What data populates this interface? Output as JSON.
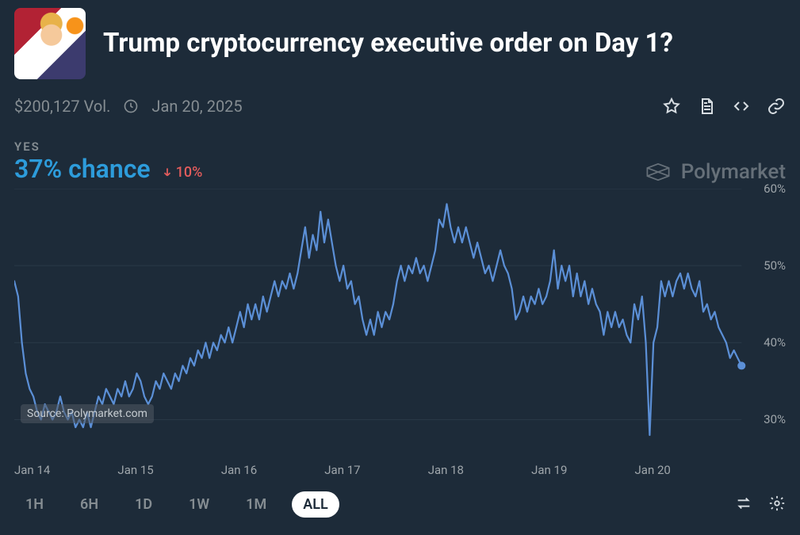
{
  "header": {
    "title": "Trump cryptocurrency executive order on Day 1?"
  },
  "meta": {
    "volume": "$200,127 Vol.",
    "date": "Jan 20, 2025"
  },
  "outcome": {
    "label": "YES",
    "chance_text": "37% chance",
    "delta_text": "10%",
    "delta_direction": "down"
  },
  "brand": "Polymarket",
  "source_badge": "Source: Polymarket.com",
  "chart": {
    "type": "line",
    "line_color": "#5b8fd6",
    "end_marker_color": "#5b8fd6",
    "background_color": "#1d2b39",
    "grid_color": "#2a3a49",
    "line_width": 2.2,
    "ylim": [
      25,
      60
    ],
    "y_ticks": [
      30,
      40,
      50,
      60
    ],
    "y_tick_labels": [
      "30%",
      "40%",
      "50%",
      "60%"
    ],
    "x_tick_labels": [
      "Jan 14",
      "Jan 15",
      "Jan 16",
      "Jan 17",
      "Jan 18",
      "Jan 19",
      "Jan 20"
    ],
    "values": [
      48,
      46,
      40,
      36,
      34,
      33,
      31,
      30,
      32,
      31,
      30,
      31,
      33,
      31,
      30,
      31,
      29,
      30,
      29,
      31,
      29,
      31,
      33,
      32,
      34,
      33,
      32,
      34,
      33,
      35,
      33,
      34,
      36,
      35,
      33,
      32,
      33,
      35,
      34,
      36,
      35,
      34,
      36,
      35,
      37,
      36,
      38,
      37,
      39,
      38,
      40,
      38,
      40,
      39,
      41,
      40,
      42,
      40,
      42,
      44,
      42,
      45,
      43,
      45,
      43,
      46,
      44,
      46,
      48,
      46,
      48,
      47,
      49,
      47,
      49,
      52,
      55,
      51,
      54,
      52,
      57,
      53,
      56,
      53,
      50,
      48,
      50,
      47,
      48,
      45,
      46,
      43,
      41,
      43,
      41,
      44,
      42,
      44,
      43,
      45,
      48,
      50,
      48,
      50,
      49,
      51,
      49,
      50,
      48,
      50,
      52,
      56,
      55,
      58,
      55,
      53,
      55,
      53,
      55,
      53,
      51,
      53,
      51,
      49,
      50,
      48,
      50,
      52,
      50,
      49,
      47,
      43,
      44,
      46,
      44,
      46,
      45,
      47,
      45,
      46,
      48,
      52,
      47,
      50,
      48,
      50,
      46,
      49,
      46,
      48,
      45,
      47,
      45,
      44,
      41,
      44,
      42,
      44,
      42,
      43,
      41,
      40,
      45,
      43,
      46,
      40,
      28,
      40,
      42,
      48,
      46,
      48,
      46,
      48,
      49,
      47,
      49,
      47,
      46,
      48,
      44,
      45,
      43,
      44,
      42,
      41,
      40,
      38,
      39,
      38,
      37
    ]
  },
  "ranges": {
    "options": [
      "1H",
      "6H",
      "1D",
      "1W",
      "1M",
      "ALL"
    ],
    "active": "ALL"
  },
  "colors": {
    "bg": "#1d2b39",
    "text_muted": "#858d92",
    "axis_text": "#9ea5aa",
    "accent_blue": "#2d9cdb",
    "down_red": "#e25c5c",
    "icon": "#d7dde2"
  }
}
